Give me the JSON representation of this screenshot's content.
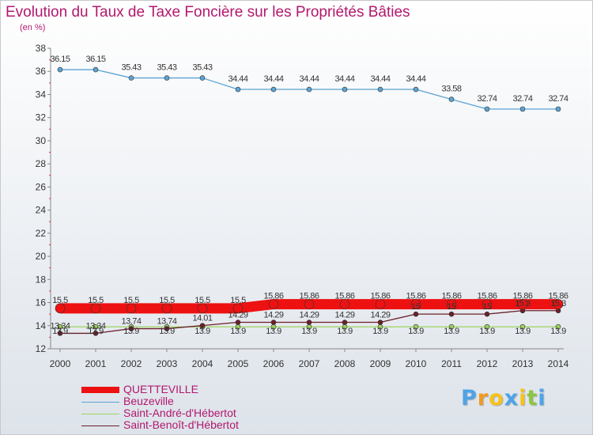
{
  "header": {
    "title": "Evolution du Taux de Taxe Foncière sur les Propriétés Bâties",
    "unit": "(en %)"
  },
  "brand": {
    "letters": [
      "P",
      "r",
      "o",
      "x",
      "i",
      "t",
      "i"
    ],
    "colors": [
      "#4da3e8",
      "#f29a1d",
      "#f7c21a",
      "#4da3e8",
      "#f7c21a",
      "#8dc63f",
      "#4da3e8"
    ]
  },
  "chart_data": {
    "type": "line",
    "title": "Evolution du Taux de Taxe Foncière sur les Propriétés Bâties",
    "ylabel": "(en %)",
    "xlabel": "",
    "x": [
      "2000",
      "2001",
      "2002",
      "2003",
      "2004",
      "2005",
      "2006",
      "2007",
      "2008",
      "2009",
      "2010",
      "2011",
      "2012",
      "2013",
      "2014"
    ],
    "ylim": [
      12,
      38
    ],
    "yticks": [
      "12",
      "14",
      "16",
      "18",
      "20",
      "22",
      "24",
      "26",
      "28",
      "30",
      "32",
      "34",
      "36",
      "38"
    ],
    "grid": false,
    "legend_position": "bottom-left",
    "series": [
      {
        "name": "QUETTEVILLE",
        "color": "#ee1111",
        "values": [
          15.5,
          15.5,
          15.5,
          15.5,
          15.5,
          15.5,
          15.86,
          15.86,
          15.86,
          15.86,
          15.86,
          15.86,
          15.86,
          15.86,
          15.86
        ],
        "labels": [
          "15.5",
          "15.5",
          "15.5",
          "15.5",
          "15.5",
          "15.5",
          "15.86",
          "15.86",
          "15.86",
          "15.86",
          "15.86",
          "15.86",
          "15.86",
          "15.86",
          "15.86"
        ]
      },
      {
        "name": "Beuzeville",
        "color": "#5ba3d3",
        "values": [
          36.15,
          36.15,
          35.43,
          35.43,
          35.43,
          34.44,
          34.44,
          34.44,
          34.44,
          34.44,
          34.44,
          33.58,
          32.74,
          32.74,
          32.74
        ],
        "labels": [
          "36.15",
          "36.15",
          "35.43",
          "35.43",
          "35.43",
          "34.44",
          "34.44",
          "34.44",
          "34.44",
          "34.44",
          "34.44",
          "33.58",
          "32.74",
          "32.74",
          "32.74"
        ]
      },
      {
        "name": "Saint-André-d'Hébertot",
        "color": "#9dd35f",
        "values": [
          13.9,
          13.9,
          13.9,
          13.9,
          13.9,
          13.9,
          13.9,
          13.9,
          13.9,
          13.9,
          13.9,
          13.9,
          13.9,
          13.9,
          13.9
        ],
        "labels": [
          "13.9",
          "13.9",
          "13.9",
          "13.9",
          "13.9",
          "13.9",
          "13.9",
          "13.9",
          "13.9",
          "13.9",
          "13.9",
          "13.9",
          "13.9",
          "13.9",
          "13.9"
        ]
      },
      {
        "name": "Saint-Benoît-d'Hébertot",
        "color": "#6b1f2a",
        "values": [
          13.34,
          13.34,
          13.74,
          13.74,
          14.01,
          14.29,
          14.29,
          14.29,
          14.29,
          14.29,
          15.0,
          15.0,
          15.0,
          15.3,
          15.3
        ],
        "labels": [
          "13.34",
          "13.34",
          "13.74",
          "13.74",
          "14.01",
          "14.29",
          "14.29",
          "14.29",
          "14.29",
          "14.29",
          "15",
          "15",
          "15",
          "15.3",
          "15.3"
        ]
      }
    ]
  }
}
